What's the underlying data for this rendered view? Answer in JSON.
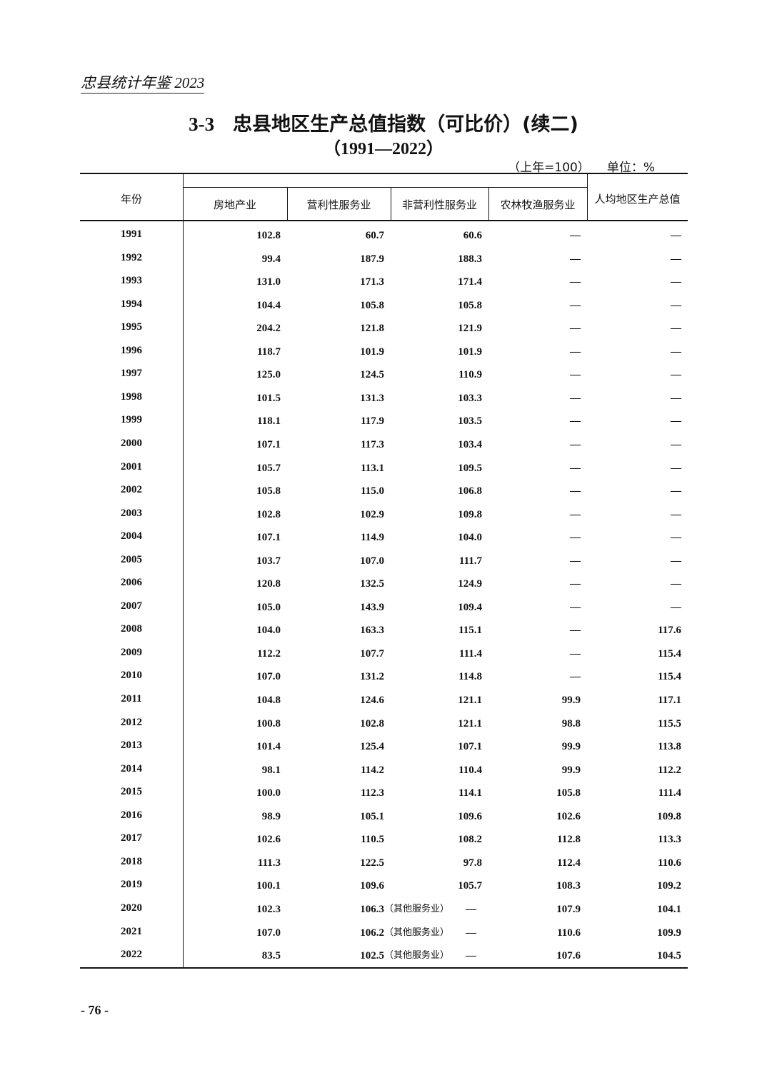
{
  "running_header": "忠县统计年鉴 2023",
  "title_number": "3-3",
  "title": "忠县地区生产总值指数（可比价）(续二)",
  "subtitle": "（1991—2022）",
  "base_note": "（上年=100）",
  "unit": "单位：%",
  "headers": {
    "year": "年份",
    "columns": [
      "房地产业",
      "营利性服务业",
      "非营利性服务业",
      "农林牧渔服务业",
      "人均地区生产总值"
    ]
  },
  "rows": [
    {
      "year": "1991",
      "values": [
        "102.8",
        "60.7",
        "60.6",
        "—",
        "—"
      ]
    },
    {
      "year": "1992",
      "values": [
        "99.4",
        "187.9",
        "188.3",
        "—",
        "—"
      ]
    },
    {
      "year": "1993",
      "values": [
        "131.0",
        "171.3",
        "171.4",
        "—",
        "—"
      ]
    },
    {
      "year": "1994",
      "values": [
        "104.4",
        "105.8",
        "105.8",
        "—",
        "—"
      ]
    },
    {
      "year": "1995",
      "values": [
        "204.2",
        "121.8",
        "121.9",
        "—",
        "—"
      ]
    },
    {
      "year": "1996",
      "values": [
        "118.7",
        "101.9",
        "101.9",
        "—",
        "—"
      ]
    },
    {
      "year": "1997",
      "values": [
        "125.0",
        "124.5",
        "110.9",
        "—",
        "—"
      ]
    },
    {
      "year": "1998",
      "values": [
        "101.5",
        "131.3",
        "103.3",
        "—",
        "—"
      ]
    },
    {
      "year": "1999",
      "values": [
        "118.1",
        "117.9",
        "103.5",
        "—",
        "—"
      ]
    },
    {
      "year": "2000",
      "values": [
        "107.1",
        "117.3",
        "103.4",
        "—",
        "—"
      ]
    },
    {
      "year": "2001",
      "values": [
        "105.7",
        "113.1",
        "109.5",
        "—",
        "—"
      ]
    },
    {
      "year": "2002",
      "values": [
        "105.8",
        "115.0",
        "106.8",
        "—",
        "—"
      ]
    },
    {
      "year": "2003",
      "values": [
        "102.8",
        "102.9",
        "109.8",
        "—",
        "—"
      ]
    },
    {
      "year": "2004",
      "values": [
        "107.1",
        "114.9",
        "104.0",
        "—",
        "—"
      ]
    },
    {
      "year": "2005",
      "values": [
        "103.7",
        "107.0",
        "111.7",
        "—",
        "—"
      ]
    },
    {
      "year": "2006",
      "values": [
        "120.8",
        "132.5",
        "124.9",
        "—",
        "—"
      ]
    },
    {
      "year": "2007",
      "values": [
        "105.0",
        "143.9",
        "109.4",
        "—",
        "—"
      ]
    },
    {
      "year": "2008",
      "values": [
        "104.0",
        "163.3",
        "115.1",
        "—",
        "117.6"
      ]
    },
    {
      "year": "2009",
      "values": [
        "112.2",
        "107.7",
        "111.4",
        "—",
        "115.4"
      ]
    },
    {
      "year": "2010",
      "values": [
        "107.0",
        "131.2",
        "114.8",
        "—",
        "115.4"
      ]
    },
    {
      "year": "2011",
      "values": [
        "104.8",
        "124.6",
        "121.1",
        "99.9",
        "117.1"
      ]
    },
    {
      "year": "2012",
      "values": [
        "100.8",
        "102.8",
        "121.1",
        "98.8",
        "115.5"
      ]
    },
    {
      "year": "2013",
      "values": [
        "101.4",
        "125.4",
        "107.1",
        "99.9",
        "113.8"
      ]
    },
    {
      "year": "2014",
      "values": [
        "98.1",
        "114.2",
        "110.4",
        "99.9",
        "112.2"
      ]
    },
    {
      "year": "2015",
      "values": [
        "100.0",
        "112.3",
        "114.1",
        "105.8",
        "111.4"
      ]
    },
    {
      "year": "2016",
      "values": [
        "98.9",
        "105.1",
        "109.6",
        "102.6",
        "109.8"
      ]
    },
    {
      "year": "2017",
      "values": [
        "102.6",
        "110.5",
        "108.2",
        "112.8",
        "113.3"
      ]
    },
    {
      "year": "2018",
      "values": [
        "111.3",
        "122.5",
        "97.8",
        "112.4",
        "110.6"
      ]
    },
    {
      "year": "2019",
      "values": [
        "100.1",
        "109.6",
        "105.7",
        "108.3",
        "109.2"
      ]
    },
    {
      "year": "2020",
      "values": [
        "102.3",
        "106.3",
        "—",
        "107.9",
        "104.1"
      ],
      "note": "（其他服务业）"
    },
    {
      "year": "2021",
      "values": [
        "107.0",
        "106.2",
        "—",
        "110.6",
        "109.9"
      ],
      "note": "（其他服务业）"
    },
    {
      "year": "2022",
      "values": [
        "83.5",
        "102.5",
        "—",
        "107.6",
        "104.5"
      ],
      "note": "（其他服务业）"
    }
  ],
  "page_number": "- 76 -"
}
